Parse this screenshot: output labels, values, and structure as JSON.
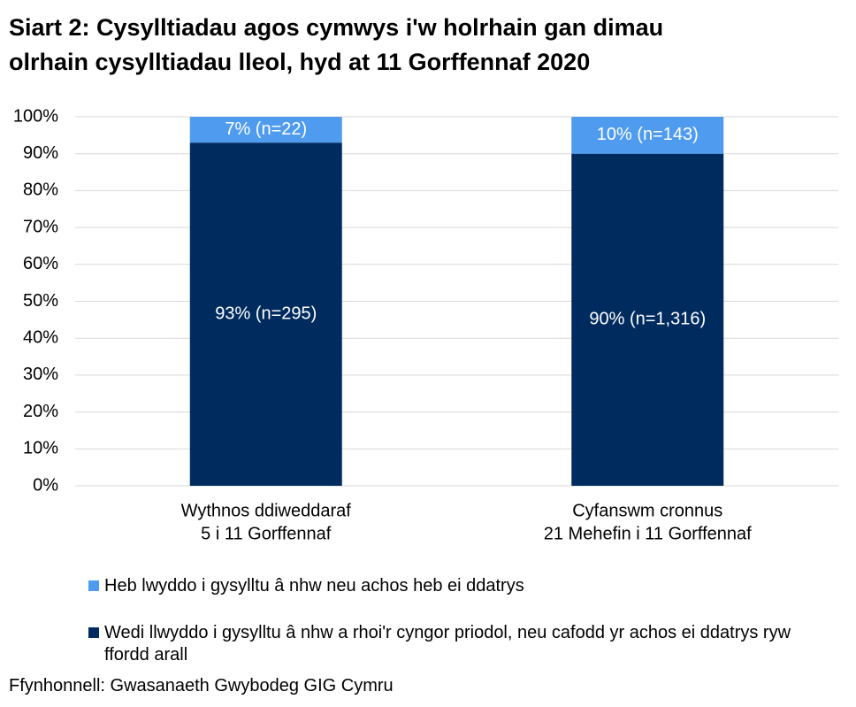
{
  "chart_data": {
    "type": "stacked_bar",
    "title": [
      "Siart 2: Cysylltiadau agos cymwys i'w holrhain gan dimau",
      "olrhain cysylltiadau lleol, hyd at 11 Gorffennaf 2020"
    ],
    "categories": [
      [
        "Wythnos ddiweddaraf",
        "5 i 11 Gorffennaf"
      ],
      [
        "Cyfanswm cronnus",
        "21 Mehefin i 11 Gorffennaf"
      ]
    ],
    "series": [
      {
        "name": "Wedi llwyddo i gysylltu â nhw a rhoi'r cyngor priodol, neu cafodd yr achos ei ddatrys ryw ffordd arall",
        "color": "#002b5f",
        "values": [
          93,
          90
        ],
        "value_labels": [
          "93% (n=295)",
          "90% (n=1,316)"
        ]
      },
      {
        "name": "Heb lwyddo i gysylltu â nhw neu achos heb ei ddatrys",
        "color": "#4f9bf0",
        "values": [
          7,
          10
        ],
        "value_labels": [
          "7% (n=22)",
          "10% (n=143)"
        ]
      }
    ],
    "ylim": [
      0,
      100
    ],
    "yticks": [
      {
        "value": 0,
        "label": "0%"
      },
      {
        "value": 10,
        "label": "10%"
      },
      {
        "value": 20,
        "label": "20%"
      },
      {
        "value": 30,
        "label": "30%"
      },
      {
        "value": 40,
        "label": "40%"
      },
      {
        "value": 50,
        "label": "50%"
      },
      {
        "value": 60,
        "label": "60%"
      },
      {
        "value": 70,
        "label": "70%"
      },
      {
        "value": 80,
        "label": "80%"
      },
      {
        "value": 90,
        "label": "90%"
      },
      {
        "value": 100,
        "label": "100%"
      }
    ],
    "grid": true,
    "source": "Ffynhonnell: Gwasanaeth Gwybodeg GIG Cymru"
  }
}
